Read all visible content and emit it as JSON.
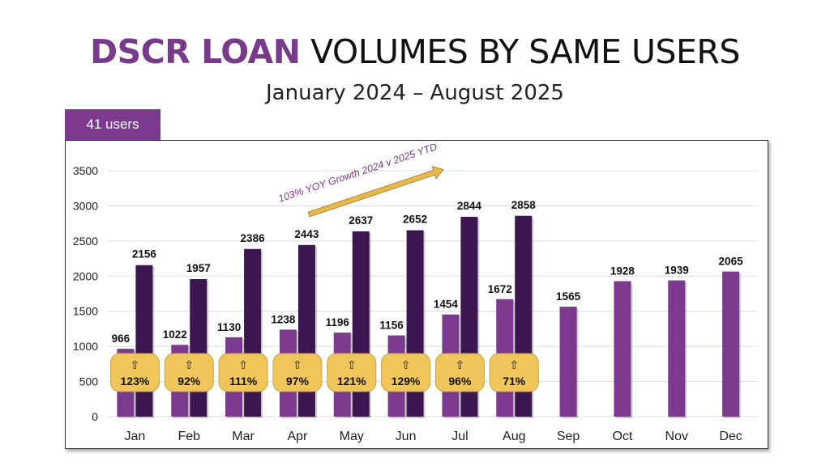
{
  "header": {
    "title_highlight": "DSCR LOAN",
    "title_rest": "VOLUMES BY SAME USERS",
    "subtitle": "January 2024 – August 2025"
  },
  "badge": {
    "label": "41 users"
  },
  "colors": {
    "series_2024": "#7b3a8d",
    "series_2025": "#3b1650",
    "growth_badge": "#f0c55a",
    "arrow": "#e8b84a",
    "annotation": "#7a3a8c"
  },
  "chart_data": {
    "type": "bar",
    "categories": [
      "Jan",
      "Feb",
      "Mar",
      "Apr",
      "May",
      "Jun",
      "Jul",
      "Aug",
      "Sep",
      "Oct",
      "Nov",
      "Dec"
    ],
    "series": [
      {
        "values": [
          966,
          1022,
          1130,
          1238,
          1196,
          1156,
          1454,
          1672,
          1565,
          1928,
          1939,
          2065
        ]
      },
      {
        "values": [
          2156,
          1957,
          2386,
          2443,
          2637,
          2652,
          2844,
          2858,
          null,
          null,
          null,
          null
        ]
      }
    ],
    "growth_labels": [
      "⇧",
      "⇧",
      "⇧",
      "⇧",
      "⇧",
      "⇧",
      "⇧",
      "⇧"
    ],
    "growth": [
      "123%",
      "92%",
      "111%",
      "97%",
      "121%",
      "129%",
      "96%",
      "71%"
    ],
    "ylim": [
      0,
      3500
    ],
    "yticks": [
      0,
      500,
      1000,
      1500,
      2000,
      2500,
      3000,
      3500
    ],
    "grid": true,
    "annotation": "103% YOY Growth 2024 v 2025 YTD",
    "xlabel": "",
    "ylabel": ""
  }
}
